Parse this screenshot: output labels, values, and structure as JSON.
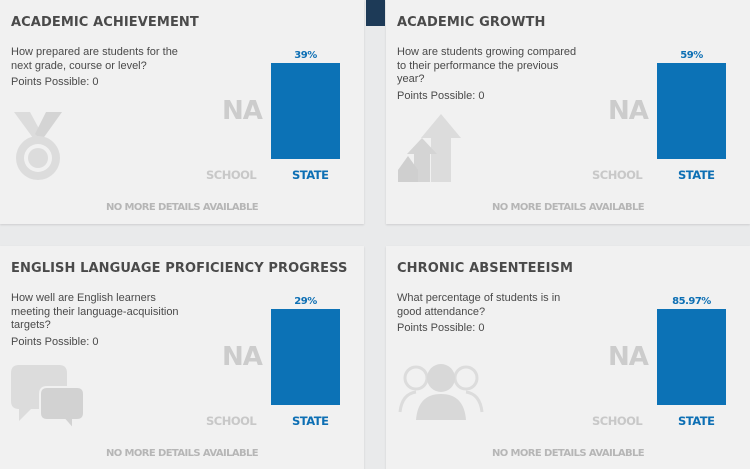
{
  "cards": [
    {
      "title": "ACADEMIC ACHIEVEMENT",
      "question": "How prepared are students for the next grade, course or level?",
      "points": "Points Possible: 0",
      "icon": "medal-icon",
      "school_value": "NA",
      "school_label": "SCHOOL",
      "state_label": "STATE",
      "state_value": "39%",
      "footer": "NO MORE DETAILS AVAILABLE"
    },
    {
      "title": "ACADEMIC GROWTH",
      "question": "How are students growing compared to their performance the previous year?",
      "points": "Points Possible: 0",
      "icon": "growth-arrow-icon",
      "school_value": "NA",
      "school_label": "SCHOOL",
      "state_label": "STATE",
      "state_value": "59%",
      "footer": "NO MORE DETAILS AVAILABLE"
    },
    {
      "title": "ENGLISH LANGUAGE PROFICIENCY PROGRESS",
      "question": "How well are English learners meeting their language-acquisition targets?",
      "points": "Points Possible: 0",
      "icon": "speech-bubbles-icon",
      "school_value": "NA",
      "school_label": "SCHOOL",
      "state_label": "STATE",
      "state_value": "29%",
      "footer": "NO MORE DETAILS AVAILABLE"
    },
    {
      "title": "CHRONIC ABSENTEEISM",
      "question": "What percentage of students is in good attendance?",
      "points": "Points Possible: 0",
      "icon": "people-group-icon",
      "school_value": "NA",
      "school_label": "SCHOOL",
      "state_label": "STATE",
      "state_value": "85.97%",
      "footer": "NO MORE DETAILS AVAILABLE"
    }
  ],
  "colors": {
    "state_bar": "#0c72b6",
    "state_text": "#0d6fb4",
    "muted_text": "#c8c8c8",
    "card_bg": "#f1f1f1",
    "page_bg": "#e9eaeb",
    "top_accent": "#1d3a57"
  }
}
